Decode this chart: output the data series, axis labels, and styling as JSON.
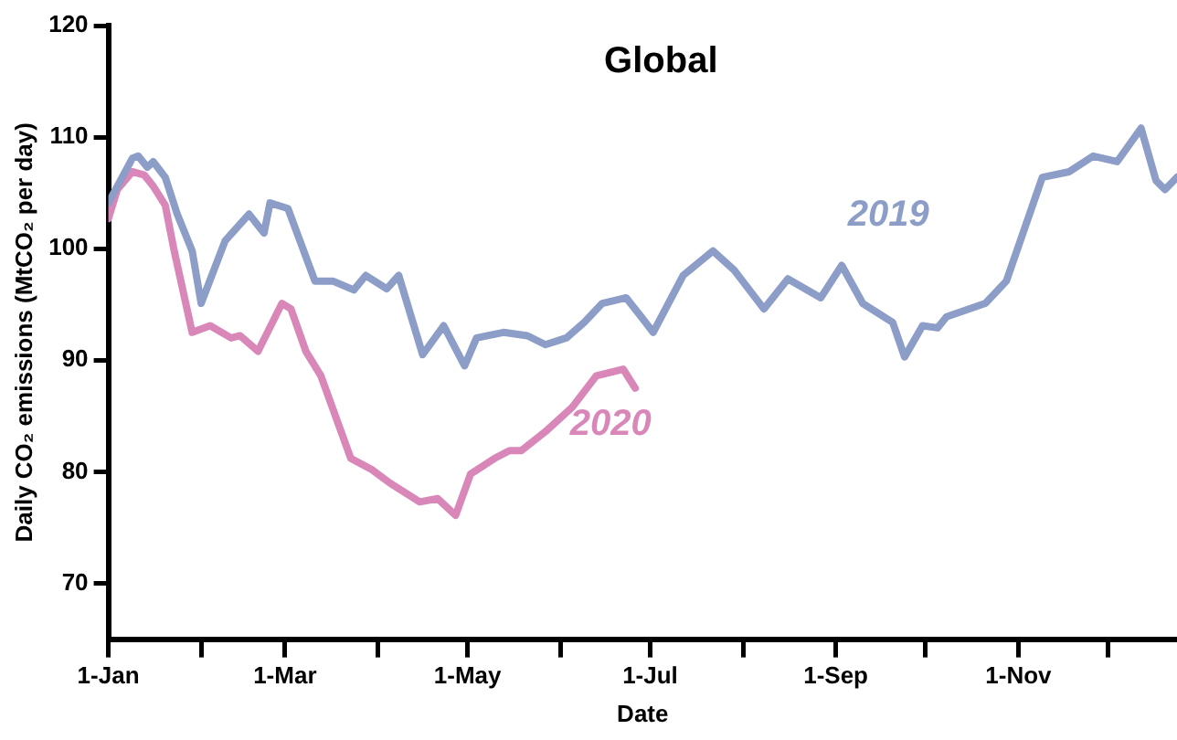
{
  "chart_data": {
    "type": "line",
    "title": "Global",
    "xlabel": "Date",
    "ylabel": "Daily CO₂ emissions (MtCO₂ per day)",
    "xlim": [
      "--01-01",
      "--12-24"
    ],
    "xticks": [
      {
        "value": "--01-01",
        "label": "1-Jan"
      },
      {
        "value": "--02-01",
        "label": null
      },
      {
        "value": "--03-01",
        "label": "1-Mar"
      },
      {
        "value": "--04-01",
        "label": null
      },
      {
        "value": "--05-01",
        "label": "1-May"
      },
      {
        "value": "--06-01",
        "label": null
      },
      {
        "value": "--07-01",
        "label": "1-Jul"
      },
      {
        "value": "--08-01",
        "label": null
      },
      {
        "value": "--09-01",
        "label": "1-Sep"
      },
      {
        "value": "--10-01",
        "label": null
      },
      {
        "value": "--11-01",
        "label": "1-Nov"
      },
      {
        "value": "--12-01",
        "label": null
      }
    ],
    "ylim": [
      65,
      120
    ],
    "yticks": [
      70,
      80,
      90,
      100,
      110,
      120
    ],
    "grid": false,
    "legend": false,
    "marker": "none",
    "line_style": "solid",
    "series": [
      {
        "name": "2019",
        "color": "#8c9dc8",
        "x": [
          "--01-01",
          "--01-09",
          "--01-11",
          "--01-14",
          "--01-16",
          "--01-20",
          "--01-24",
          "--01-29",
          "--02-01",
          "--02-09",
          "--02-17",
          "--02-22",
          "--02-24",
          "--03-02",
          "--03-11",
          "--03-17",
          "--03-24",
          "--03-28",
          "--04-04",
          "--04-08",
          "--04-16",
          "--04-23",
          "--04-30",
          "--05-04",
          "--05-13",
          "--05-21",
          "--05-27",
          "--06-03",
          "--06-09",
          "--06-15",
          "--06-23",
          "--06-28",
          "--07-02",
          "--07-12",
          "--07-22",
          "--07-29",
          "--08-08",
          "--08-16",
          "--08-27",
          "--09-03",
          "--09-10",
          "--09-20",
          "--09-24",
          "--09-30",
          "--10-05",
          "--10-08",
          "--10-21",
          "--10-28",
          "--11-09",
          "--11-18",
          "--11-26",
          "--12-04",
          "--12-12",
          "--12-17",
          "--12-20",
          "--12-24"
        ],
        "values": [
          104.1,
          108.1,
          108.3,
          107.3,
          107.8,
          106.4,
          103.1,
          99.8,
          95.1,
          100.7,
          103.1,
          101.4,
          104.1,
          103.6,
          97.1,
          97.1,
          96.3,
          97.6,
          96.4,
          97.6,
          90.5,
          93.1,
          89.5,
          92.0,
          92.5,
          92.2,
          91.4,
          92.0,
          93.4,
          95.1,
          95.6,
          93.9,
          92.5,
          97.6,
          99.8,
          98.1,
          94.6,
          97.3,
          95.6,
          98.5,
          95.1,
          93.4,
          90.3,
          93.1,
          92.9,
          93.9,
          95.1,
          97.1,
          106.4,
          106.9,
          108.3,
          107.8,
          110.8,
          106.1,
          105.3,
          106.4
        ]
      },
      {
        "name": "2020",
        "color": "#d987b9",
        "x": [
          "--01-01",
          "--01-04",
          "--01-09",
          "--01-13",
          "--01-16",
          "--01-20",
          "--01-23",
          "--01-29",
          "--02-04",
          "--02-11",
          "--02-14",
          "--02-20",
          "--02-28",
          "--03-03",
          "--03-08",
          "--03-13",
          "--03-23",
          "--03-30",
          "--04-05",
          "--04-15",
          "--04-21",
          "--04-27",
          "--05-02",
          "--05-10",
          "--05-15",
          "--05-19",
          "--05-27",
          "--06-05",
          "--06-13",
          "--06-22",
          "--06-26"
        ],
        "values": [
          102.7,
          105.3,
          106.9,
          106.6,
          105.6,
          103.9,
          99.8,
          92.5,
          93.1,
          92.0,
          92.2,
          90.8,
          95.1,
          94.6,
          90.8,
          88.6,
          81.2,
          80.2,
          79.0,
          77.3,
          77.6,
          76.1,
          79.8,
          81.2,
          81.9,
          81.9,
          83.6,
          85.8,
          88.6,
          89.2,
          87.5
        ]
      }
    ]
  }
}
